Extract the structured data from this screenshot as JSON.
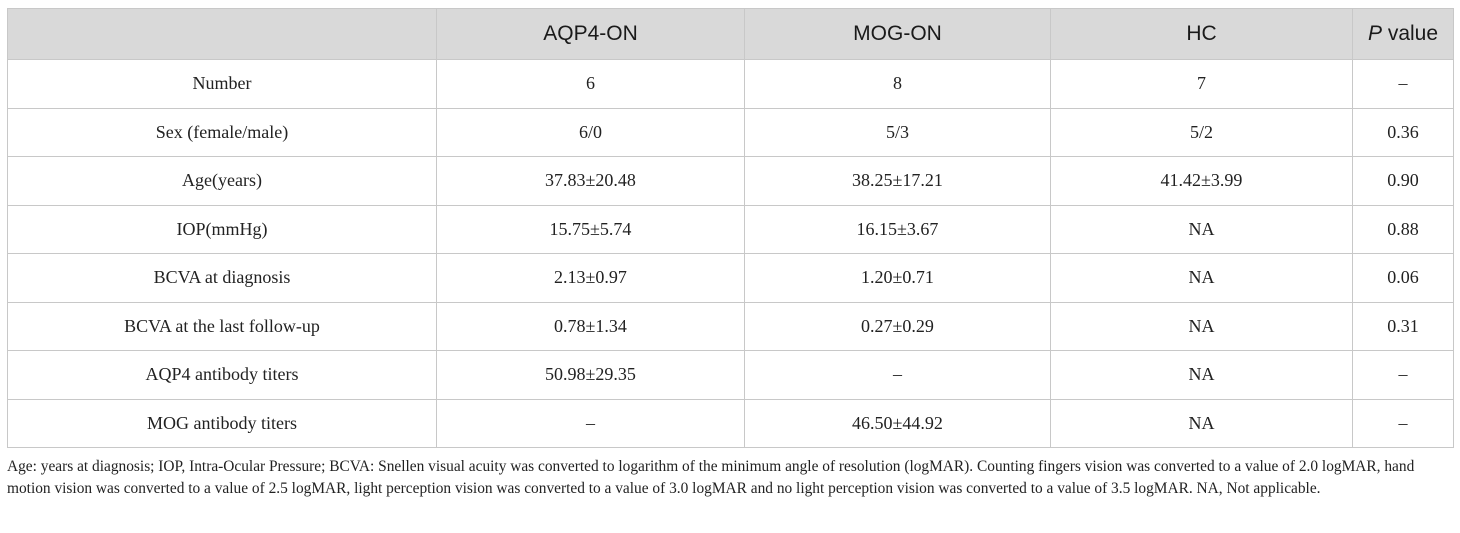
{
  "table": {
    "headers": [
      "",
      "AQP4-ON",
      "MOG-ON",
      "HC"
    ],
    "p_header": {
      "italic": "P",
      "rest": " value"
    },
    "rows": [
      [
        "Number",
        "6",
        "8",
        "7",
        "–"
      ],
      [
        "Sex (female/male)",
        "6/0",
        "5/3",
        "5/2",
        "0.36"
      ],
      [
        "Age(years)",
        "37.83±20.48",
        "38.25±17.21",
        "41.42±3.99",
        "0.90"
      ],
      [
        "IOP(mmHg)",
        "15.75±5.74",
        "16.15±3.67",
        "NA",
        "0.88"
      ],
      [
        "BCVA at diagnosis",
        "2.13±0.97",
        "1.20±0.71",
        "NA",
        "0.06"
      ],
      [
        "BCVA at the last follow-up",
        "0.78±1.34",
        "0.27±0.29",
        "NA",
        "0.31"
      ],
      [
        "AQP4 antibody titers",
        "50.98±29.35",
        "–",
        "NA",
        "–"
      ],
      [
        "MOG antibody titers",
        "–",
        "46.50±44.92",
        "NA",
        "–"
      ]
    ]
  },
  "footnote": "Age: years at diagnosis; IOP, Intra-Ocular Pressure; BCVA: Snellen visual acuity was converted to logarithm of the minimum angle of resolution (logMAR). Counting fingers vision was converted to a value of 2.0 logMAR, hand motion vision was converted to a value of 2.5 logMAR, light perception vision was converted to a value of 3.0 logMAR and no light perception vision was converted to a value of 3.5 logMAR. NA, Not applicable.",
  "colors": {
    "header_bg": "#d9d9d9",
    "border": "#c8c8c8",
    "text": "#222222"
  }
}
